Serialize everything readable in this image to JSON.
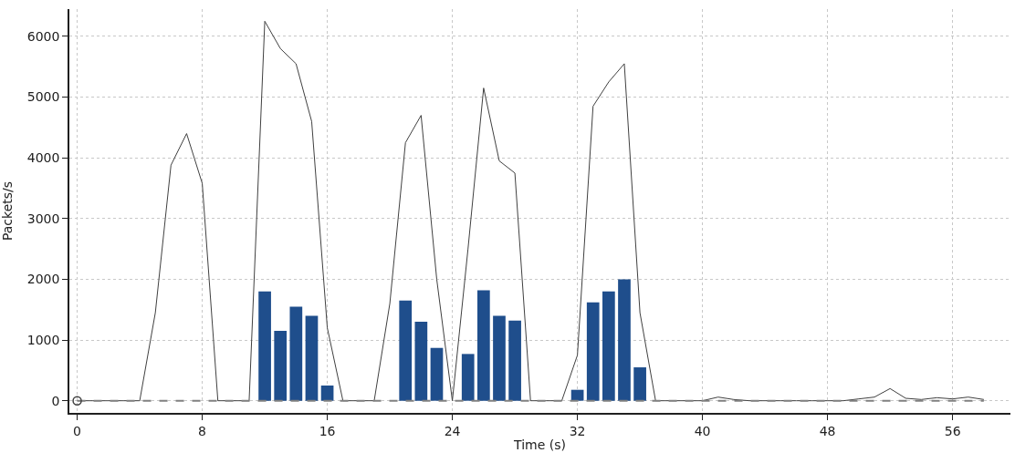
{
  "chart_data": {
    "type": "line",
    "xlabel": "Time (s)",
    "ylabel": "Packets/s",
    "xlim": [
      -0.5,
      59.7
    ],
    "ylim": [
      -200,
      6450
    ],
    "xticks": [
      0,
      8,
      16,
      24,
      32,
      40,
      48,
      56
    ],
    "yticks": [
      0,
      1000,
      2000,
      3000,
      4000,
      5000,
      6000
    ],
    "grid": true,
    "series": [
      {
        "type": "bar",
        "color": "#1f4e8c",
        "x": [
          12,
          13,
          14,
          15,
          16,
          21,
          22,
          23,
          25,
          26,
          27,
          28,
          32,
          33,
          34,
          35,
          36
        ],
        "values": [
          1800,
          1150,
          1550,
          1400,
          250,
          1650,
          1300,
          870,
          770,
          1820,
          1400,
          1320,
          180,
          1620,
          1800,
          2000,
          550
        ]
      },
      {
        "color": "#404040",
        "line_style": "solid",
        "marker": "none",
        "x": [
          0,
          1,
          2,
          3,
          4,
          5,
          6,
          7,
          8,
          9,
          10,
          11,
          12,
          13,
          14,
          15,
          16,
          17,
          18,
          19,
          20,
          21,
          22,
          23,
          24,
          25,
          26,
          27,
          28,
          29,
          30,
          31,
          32,
          33,
          34,
          35,
          36,
          37,
          38,
          39,
          40,
          41,
          42,
          43,
          44,
          45,
          46,
          47,
          48,
          49,
          50,
          51,
          52,
          53,
          54,
          55,
          56,
          57,
          58
        ],
        "values": [
          0,
          0,
          0,
          0,
          0,
          1450,
          3880,
          4400,
          3580,
          0,
          0,
          0,
          6250,
          5800,
          5550,
          4600,
          1200,
          0,
          0,
          0,
          1600,
          4250,
          4700,
          2000,
          0,
          2500,
          5150,
          3950,
          3750,
          0,
          0,
          0,
          750,
          4850,
          5250,
          5550,
          1450,
          0,
          0,
          0,
          0,
          60,
          20,
          0,
          0,
          0,
          0,
          0,
          0,
          0,
          30,
          60,
          200,
          40,
          20,
          50,
          30,
          60,
          20
        ]
      },
      {
        "color": "#808080",
        "line_style": "dashed",
        "marker": "none",
        "x": [
          0,
          58
        ],
        "values": [
          0,
          0
        ]
      },
      {
        "type": "scatter",
        "color": "#404040",
        "marker": "circle",
        "x": [
          0
        ],
        "values": [
          0
        ]
      }
    ]
  }
}
